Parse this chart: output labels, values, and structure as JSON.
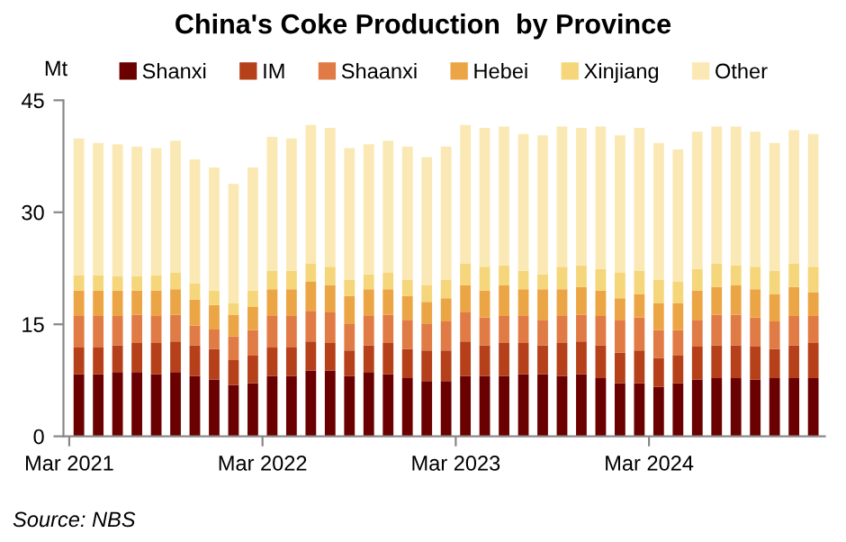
{
  "chart_data": {
    "type": "bar",
    "title": "China's Coke Production  by Province",
    "ylabel": "Mt",
    "stacked": true,
    "categories": [
      "Mar 2021",
      null,
      null,
      null,
      null,
      null,
      null,
      null,
      null,
      null,
      "Mar 2022",
      null,
      null,
      null,
      null,
      null,
      null,
      null,
      null,
      null,
      "Mar 2023",
      null,
      null,
      null,
      null,
      null,
      null,
      null,
      null,
      null,
      "Mar 2024",
      null,
      null,
      null,
      null,
      null,
      null,
      null,
      null
    ],
    "series": [
      {
        "name": "Shanxi",
        "color": "#6b0000",
        "values": [
          8.3,
          8.3,
          8.6,
          8.6,
          8.3,
          8.6,
          8.1,
          7.6,
          6.9,
          7.1,
          8.1,
          8.1,
          8.8,
          8.8,
          8.1,
          8.6,
          8.3,
          7.8,
          7.4,
          7.4,
          8.1,
          8.1,
          8.1,
          8.3,
          8.3,
          8.1,
          8.3,
          7.8,
          7.1,
          7.1,
          6.6,
          7.1,
          7.6,
          7.8,
          7.8,
          7.6,
          7.8,
          7.8,
          7.8
        ]
      },
      {
        "name": "IM",
        "color": "#b5401a",
        "values": [
          3.6,
          3.6,
          3.6,
          3.9,
          4.2,
          4.1,
          4.1,
          4.1,
          3.3,
          3.7,
          3.8,
          3.8,
          3.9,
          3.7,
          3.4,
          3.6,
          4.2,
          3.9,
          4.1,
          4.1,
          4.6,
          4.1,
          4.4,
          4.2,
          3.9,
          4.4,
          4.4,
          4.4,
          4.1,
          4.4,
          3.9,
          3.7,
          4.4,
          4.4,
          4.4,
          4.4,
          3.9,
          4.4,
          4.7
        ]
      },
      {
        "name": "Shaanxi",
        "color": "#e07b45",
        "values": [
          4.2,
          4.2,
          3.9,
          3.8,
          3.6,
          3.6,
          2.6,
          2.6,
          3.2,
          3.4,
          4.2,
          4.2,
          4.1,
          4.1,
          3.6,
          3.9,
          3.8,
          3.9,
          3.6,
          3.9,
          3.9,
          3.7,
          3.6,
          3.6,
          3.4,
          3.6,
          3.6,
          3.9,
          4.4,
          4.4,
          3.7,
          3.4,
          3.6,
          4.1,
          4.1,
          3.9,
          3.7,
          3.9,
          3.6
        ]
      },
      {
        "name": "Hebei",
        "color": "#eca545",
        "values": [
          3.4,
          3.4,
          3.4,
          3.2,
          3.4,
          3.4,
          3.5,
          3.3,
          2.9,
          3.1,
          3.6,
          3.6,
          3.9,
          3.6,
          3.7,
          3.6,
          3.4,
          3.2,
          2.9,
          3.1,
          3.6,
          3.6,
          4.1,
          3.6,
          4.1,
          3.6,
          3.7,
          3.4,
          2.9,
          3.1,
          3.6,
          3.6,
          3.9,
          3.7,
          3.9,
          3.8,
          3.6,
          3.9,
          3.2
        ]
      },
      {
        "name": "Xinjiang",
        "color": "#f5d67a",
        "values": [
          2.1,
          2.1,
          1.9,
          1.9,
          2.1,
          2.2,
          2.2,
          1.9,
          1.5,
          2.2,
          2.5,
          2.5,
          2.4,
          2.5,
          2.2,
          2.0,
          2.2,
          2.2,
          2.2,
          2.5,
          2.9,
          3.2,
          2.7,
          2.5,
          2.0,
          3.0,
          2.9,
          2.9,
          3.4,
          3.2,
          3.2,
          2.9,
          2.9,
          3.1,
          2.7,
          3.0,
          3.2,
          3.1,
          3.4
        ]
      },
      {
        "name": "Other",
        "color": "#fbe9b5",
        "values": [
          18.3,
          17.7,
          17.7,
          17.4,
          17.0,
          17.7,
          16.6,
          16.5,
          16.0,
          16.5,
          17.9,
          17.7,
          18.6,
          18.6,
          17.6,
          17.4,
          17.7,
          17.8,
          17.2,
          17.8,
          18.6,
          18.6,
          18.6,
          18.3,
          18.6,
          18.8,
          18.4,
          19.1,
          18.4,
          19.1,
          18.3,
          17.7,
          18.4,
          18.4,
          18.6,
          18.1,
          17.1,
          17.9,
          17.8
        ]
      }
    ],
    "ylim": [
      0,
      45
    ],
    "yticks": [
      0,
      15,
      30,
      45
    ],
    "grid": false,
    "legend": "top",
    "annotations": [
      "Source: NBS"
    ]
  }
}
